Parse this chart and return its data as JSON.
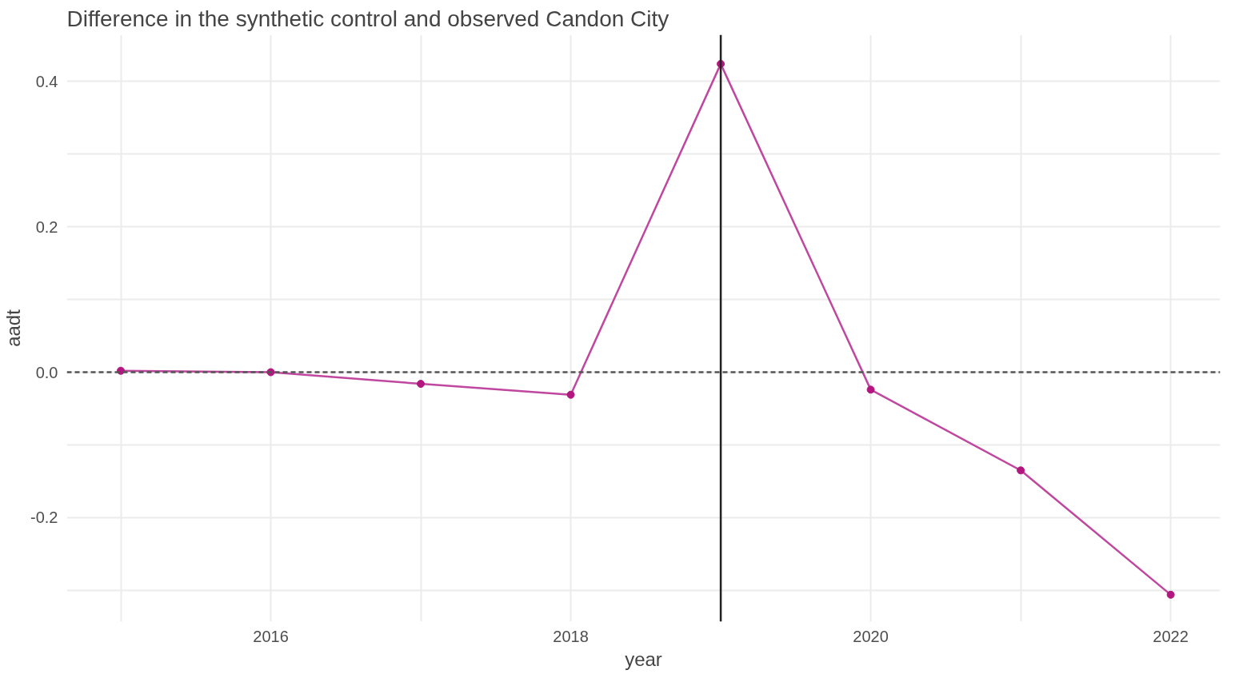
{
  "chart_data": {
    "type": "line",
    "title": "Difference in the synthetic control and observed Candon City",
    "xlabel": "year",
    "ylabel": "aadt",
    "x": [
      2015,
      2016,
      2017,
      2018,
      2019,
      2020,
      2021,
      2022
    ],
    "series": [
      {
        "color": "#c0479f",
        "values": [
          0.002,
          0.0,
          -0.016,
          -0.031,
          0.424,
          -0.024,
          -0.135,
          -0.306
        ]
      }
    ],
    "marker": "circle",
    "line_style": "solid",
    "grid": true,
    "xlim": [
      2014.64,
      2022.33
    ],
    "ylim": [
      -0.343,
      0.464
    ],
    "xticks": [
      {
        "value": 2015,
        "label": null
      },
      2016,
      {
        "value": 2017,
        "label": null
      },
      2018,
      {
        "value": 2019,
        "label": null
      },
      2020,
      {
        "value": 2021,
        "label": null
      },
      2022
    ],
    "yticks": [
      {
        "value": -0.3,
        "label": null
      },
      -0.2,
      {
        "value": -0.1,
        "label": null
      },
      {
        "value": 0,
        "label": "0.0"
      },
      {
        "value": 0.1,
        "label": null
      },
      0.2,
      {
        "value": 0.3,
        "label": null
      },
      0.4
    ],
    "ref_lines": [
      {
        "axis": "y",
        "value": 0,
        "color": "#555555",
        "line_style": "dashed"
      },
      {
        "axis": "x",
        "value": 2019,
        "color": "#222222",
        "line_style": "solid"
      }
    ]
  }
}
